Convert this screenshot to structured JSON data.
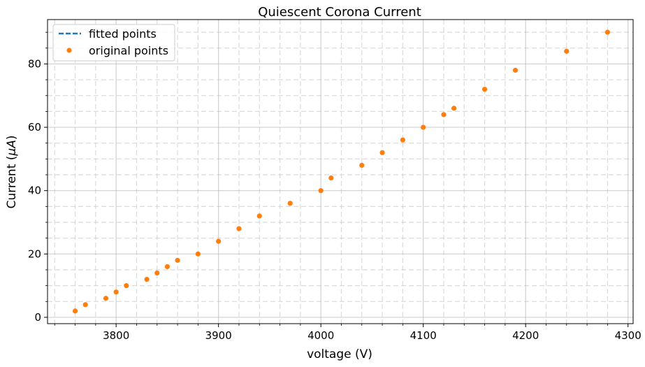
{
  "chart_data": {
    "type": "scatter",
    "title": "Quiescent Corona Current",
    "xlabel": "voltage (V)",
    "ylabel_prefix": "Current (",
    "ylabel_mu": "μA",
    "ylabel_suffix": ")",
    "xlim": [
      3733,
      4305
    ],
    "ylim": [
      -2,
      94
    ],
    "x_ticks": [
      3800,
      3900,
      4000,
      4100,
      4200,
      4300
    ],
    "x_tick_labels": [
      "3800",
      "3900",
      "4000",
      "4100",
      "4200",
      "4300"
    ],
    "y_ticks": [
      0,
      20,
      40,
      60,
      80
    ],
    "y_tick_labels": [
      "0",
      "20",
      "40",
      "60",
      "80"
    ],
    "x_minor_step": 20,
    "y_minor_step": 5,
    "grid": true,
    "legend_position": "top-left",
    "series": [
      {
        "name": "fitted points",
        "style": "dashed-line",
        "color": "#1f77b4",
        "x": [],
        "y": []
      },
      {
        "name": "original points",
        "style": "marker",
        "color": "#ff7f0e",
        "x": [
          3760,
          3770,
          3790,
          3800,
          3810,
          3830,
          3840,
          3850,
          3860,
          3880,
          3900,
          3920,
          3940,
          3970,
          4000,
          4010,
          4040,
          4060,
          4080,
          4100,
          4120,
          4130,
          4160,
          4190,
          4240,
          4280
        ],
        "y": [
          2,
          4,
          6,
          8,
          10,
          12,
          14,
          16,
          18,
          20,
          24,
          28,
          32,
          36,
          40,
          44,
          48,
          52,
          56,
          60,
          64,
          66,
          72,
          78,
          84,
          90
        ]
      }
    ]
  }
}
